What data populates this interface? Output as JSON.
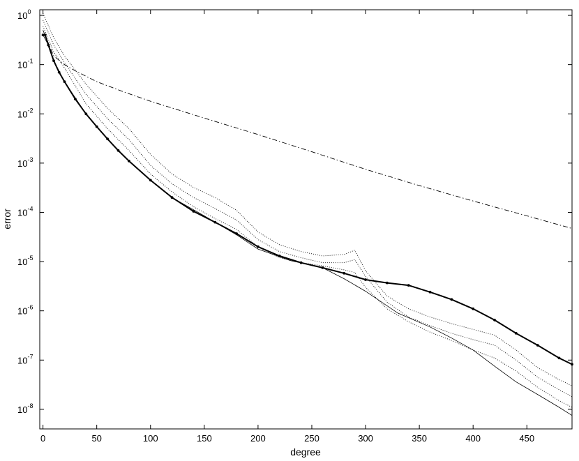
{
  "chart_data": {
    "type": "line",
    "title": "",
    "xlabel": "degree",
    "ylabel": "error",
    "xlim": [
      -3,
      492
    ],
    "ylim": [
      4e-09,
      1.3
    ],
    "yscale": "log",
    "grid": false,
    "x_ticks": [
      0,
      50,
      100,
      150,
      200,
      250,
      300,
      350,
      400,
      450
    ],
    "y_ticks": [
      {
        "base": "10",
        "exp": "0",
        "value": 1
      },
      {
        "base": "10",
        "exp": "-1",
        "value": 0.1
      },
      {
        "base": "10",
        "exp": "-2",
        "value": 0.01
      },
      {
        "base": "10",
        "exp": "-3",
        "value": 0.001
      },
      {
        "base": "10",
        "exp": "-4",
        "value": 0.0001
      },
      {
        "base": "10",
        "exp": "-5",
        "value": 1e-05
      },
      {
        "base": "10",
        "exp": "-6",
        "value": 1e-06
      },
      {
        "base": "10",
        "exp": "-7",
        "value": 1e-07
      },
      {
        "base": "10",
        "exp": "-8",
        "value": 1e-08
      }
    ],
    "series": [
      {
        "style": "dash-dot",
        "x": [
          0,
          10,
          20,
          30,
          50,
          75,
          100,
          150,
          200,
          250,
          300,
          350,
          400,
          450,
          492
        ],
        "y": [
          0.5,
          0.15,
          0.1,
          0.075,
          0.045,
          0.028,
          0.018,
          0.0082,
          0.0038,
          0.0017,
          0.00075,
          0.00035,
          0.00017,
          8.5e-05,
          4.7e-05
        ]
      },
      {
        "style": "solid-with-markers",
        "x": [
          0,
          2,
          5,
          10,
          15,
          20,
          30,
          40,
          50,
          60,
          70,
          80,
          100,
          120,
          140,
          160,
          180,
          200,
          220,
          240,
          260,
          280,
          300,
          320,
          340,
          360,
          380,
          400,
          420,
          440,
          460,
          480,
          492
        ],
        "y": [
          0.4,
          0.4,
          0.25,
          0.12,
          0.07,
          0.045,
          0.02,
          0.01,
          0.0055,
          0.0031,
          0.0018,
          0.0011,
          0.00045,
          0.0002,
          0.000105,
          6.3e-05,
          3.7e-05,
          2e-05,
          1.3e-05,
          9.5e-06,
          7.5e-06,
          5.8e-06,
          4.3e-06,
          3.7e-06,
          3.3e-06,
          2.4e-06,
          1.7e-06,
          1.1e-06,
          6.5e-07,
          3.5e-07,
          2e-07,
          1.1e-07,
          8.2e-08
        ]
      },
      {
        "style": "solid",
        "x": [
          0,
          5,
          10,
          20,
          40,
          60,
          80,
          100,
          120,
          150,
          180,
          200,
          230,
          260,
          280,
          300,
          330,
          360,
          380,
          400,
          420,
          440,
          460,
          480,
          492
        ],
        "y": [
          0.4,
          0.25,
          0.12,
          0.045,
          0.01,
          0.0031,
          0.0011,
          0.00045,
          0.0002,
          8.5e-05,
          3.5e-05,
          1.8e-05,
          1.05e-05,
          7.5e-06,
          4.5e-06,
          2.5e-06,
          9e-07,
          4.7e-07,
          2.8e-07,
          1.6e-07,
          7.5e-08,
          3.6e-08,
          2e-08,
          1.1e-08,
          7.5e-09
        ]
      },
      {
        "style": "dotted",
        "x": [
          0,
          10,
          20,
          40,
          60,
          80,
          100,
          120,
          140,
          160,
          180,
          200,
          220,
          240,
          260,
          280,
          290,
          300,
          320,
          340,
          360,
          380,
          400,
          420,
          440,
          460,
          480,
          492
        ],
        "y": [
          1.1,
          0.35,
          0.15,
          0.04,
          0.013,
          0.005,
          0.0015,
          0.0006,
          0.00032,
          0.0002,
          0.00011,
          4e-05,
          2.2e-05,
          1.6e-05,
          1.3e-05,
          1.4e-05,
          1.7e-05,
          6.5e-06,
          2e-06,
          1.1e-06,
          7.5e-07,
          5.5e-07,
          4.2e-07,
          3.2e-07,
          1.6e-07,
          7e-08,
          4e-08,
          3e-08
        ]
      },
      {
        "style": "dotted",
        "x": [
          0,
          10,
          20,
          40,
          60,
          80,
          100,
          120,
          140,
          160,
          180,
          200,
          220,
          240,
          260,
          280,
          290,
          300,
          320,
          340,
          360,
          380,
          400,
          420,
          440,
          460,
          480,
          492
        ],
        "y": [
          0.8,
          0.25,
          0.11,
          0.025,
          0.008,
          0.003,
          0.0009,
          0.00038,
          0.0002,
          0.00012,
          7e-05,
          2.8e-05,
          1.6e-05,
          1.2e-05,
          9.5e-06,
          9.5e-06,
          1.1e-05,
          5e-06,
          1.5e-06,
          7.5e-07,
          5e-07,
          3.5e-07,
          2.6e-07,
          2e-07,
          1e-07,
          4.5e-08,
          2.5e-08,
          1.8e-08
        ]
      },
      {
        "style": "dotted",
        "x": [
          0,
          10,
          20,
          40,
          60,
          80,
          100,
          120,
          140,
          160,
          180,
          200,
          220,
          240,
          260,
          280,
          290,
          300,
          320,
          340,
          360,
          380,
          400,
          420,
          440,
          460,
          480,
          492
        ],
        "y": [
          0.6,
          0.18,
          0.085,
          0.016,
          0.005,
          0.0018,
          0.0006,
          0.00026,
          0.00013,
          7.5e-05,
          4.5e-05,
          2e-05,
          1.2e-05,
          9.5e-06,
          8.2e-06,
          6.8e-06,
          6e-06,
          3e-06,
          1.1e-06,
          6e-07,
          3.7e-07,
          2.5e-07,
          1.6e-07,
          1.1e-07,
          6e-08,
          2.8e-08,
          1.5e-08,
          1.1e-08
        ]
      }
    ]
  }
}
